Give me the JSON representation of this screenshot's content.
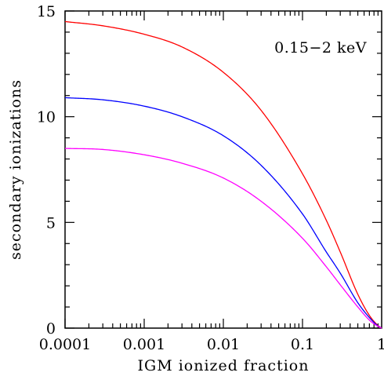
{
  "chart_data": {
    "type": "line",
    "title": "",
    "xlabel": "IGM ionized fraction",
    "ylabel": "secondary ionizations",
    "xscale": "log",
    "xlim": [
      0.0001,
      1
    ],
    "ylim": [
      0,
      15
    ],
    "grid": false,
    "legend": "none",
    "x_ticks": [
      {
        "value": 0.0001,
        "label": "0.0001"
      },
      {
        "value": 0.001,
        "label": "0.001"
      },
      {
        "value": 0.01,
        "label": "0.01"
      },
      {
        "value": 0.1,
        "label": "0.1"
      },
      {
        "value": 1,
        "label": "1"
      }
    ],
    "y_ticks": [
      {
        "value": 0,
        "label": "0"
      },
      {
        "value": 5,
        "label": "5"
      },
      {
        "value": 10,
        "label": "10"
      },
      {
        "value": 15,
        "label": "15"
      }
    ],
    "annotations": [
      {
        "text": "0.15−2 keV",
        "position": "top-right"
      }
    ],
    "series": [
      {
        "color": "#ff0000",
        "x": [
          0.0001,
          0.0003,
          0.001,
          0.003,
          0.01,
          0.03,
          0.1,
          0.2,
          0.3,
          0.5,
          0.7,
          0.9,
          1
        ],
        "values": [
          14.5,
          14.3,
          13.9,
          13.3,
          12.1,
          10.3,
          7.3,
          5.1,
          3.6,
          1.6,
          0.6,
          0.12,
          0.0
        ]
      },
      {
        "color": "#0000ff",
        "x": [
          0.0001,
          0.0003,
          0.001,
          0.003,
          0.01,
          0.03,
          0.1,
          0.2,
          0.3,
          0.5,
          0.7,
          0.9,
          1
        ],
        "values": [
          10.9,
          10.8,
          10.5,
          10.0,
          9.1,
          7.7,
          5.4,
          3.6,
          2.6,
          1.2,
          0.5,
          0.1,
          0.0
        ]
      },
      {
        "color": "#ff00ff",
        "x": [
          0.0001,
          0.0003,
          0.001,
          0.003,
          0.01,
          0.03,
          0.1,
          0.2,
          0.3,
          0.5,
          0.7,
          0.9,
          1
        ],
        "values": [
          8.5,
          8.45,
          8.2,
          7.8,
          7.1,
          6.0,
          4.25,
          2.9,
          2.05,
          1.0,
          0.38,
          0.08,
          0.0
        ]
      }
    ]
  }
}
